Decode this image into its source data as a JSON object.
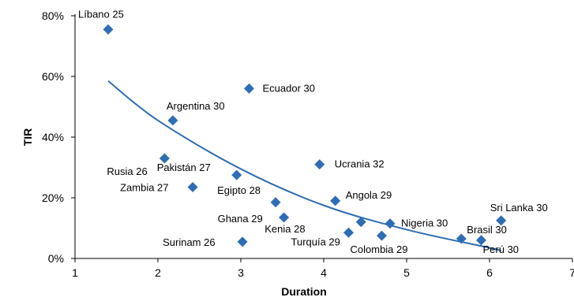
{
  "chart_data": {
    "type": "scatter",
    "xlabel": "Duration",
    "ylabel": "TIR",
    "xlim": [
      1,
      7
    ],
    "ylim": [
      0,
      80
    ],
    "x_ticks": [
      1,
      2,
      3,
      4,
      5,
      6,
      7
    ],
    "y_ticks": [
      0,
      20,
      40,
      60,
      80
    ],
    "y_tick_labels": [
      "0%",
      "20%",
      "40%",
      "60%",
      "80%"
    ],
    "grid": false,
    "marker_color": "#2E6DB4",
    "trendline_color": "#2E6DB4",
    "points": [
      {
        "label": "Líbano 25",
        "x": 1.4,
        "y": 75.5
      },
      {
        "label": "Ecuador 30",
        "x": 3.1,
        "y": 56
      },
      {
        "label": "Argentina 30",
        "x": 2.18,
        "y": 45.5
      },
      {
        "label": "Rusia 26",
        "x": 2.08,
        "y": 33
      },
      {
        "label": "Pakistán 27",
        "x": 2.95,
        "y": 27.5
      },
      {
        "label": "Zambia 27",
        "x": 2.42,
        "y": 23.5
      },
      {
        "label": "Ucrania 32",
        "x": 3.95,
        "y": 31
      },
      {
        "label": "Egipto 28",
        "x": 3.42,
        "y": 18.5
      },
      {
        "label": "Ghana 29",
        "x": 3.52,
        "y": 13.5
      },
      {
        "label": "Angola 29",
        "x": 4.14,
        "y": 19
      },
      {
        "label": "Kenia 28",
        "x": 4.45,
        "y": 12
      },
      {
        "label": "Surinam 26",
        "x": 3.02,
        "y": 5.5
      },
      {
        "label": "Turquía 29",
        "x": 4.3,
        "y": 8.5
      },
      {
        "label": "Nigeria 30",
        "x": 4.8,
        "y": 11.5
      },
      {
        "label": "Colombia 29",
        "x": 4.7,
        "y": 7.5
      },
      {
        "label": "Sri Lanka 30",
        "x": 6.14,
        "y": 12.5
      },
      {
        "label": "Brasil 30",
        "x": 5.66,
        "y": 6.5
      },
      {
        "label": "Perú 30",
        "x": 5.9,
        "y": 6
      }
    ],
    "trendline": {
      "type": "power",
      "points": [
        {
          "x": 1.4,
          "y": 58.5
        },
        {
          "x": 2.0,
          "y": 45.5
        },
        {
          "x": 3.0,
          "y": 29.5
        },
        {
          "x": 4.0,
          "y": 17.5
        },
        {
          "x": 5.0,
          "y": 9.5
        },
        {
          "x": 6.0,
          "y": 3.5
        },
        {
          "x": 6.14,
          "y": 2.5
        }
      ]
    }
  }
}
